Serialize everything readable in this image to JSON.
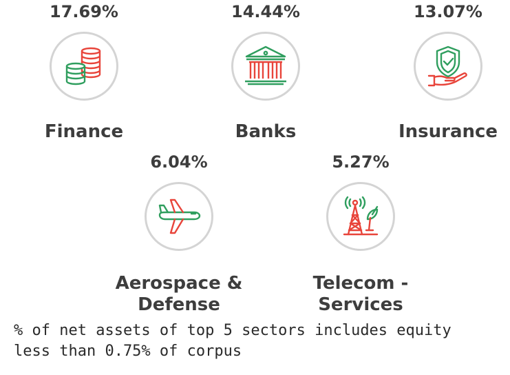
{
  "sectors": [
    {
      "name": "Finance",
      "percent": "17.69%",
      "icon": "coins-stack-icon"
    },
    {
      "name": "Banks",
      "percent": "14.44%",
      "icon": "bank-building-icon"
    },
    {
      "name": "Insurance",
      "percent": "13.07%",
      "icon": "shield-hand-icon"
    },
    {
      "name": "Aerospace & Defense",
      "percent": "6.04%",
      "icon": "airplane-icon"
    },
    {
      "name": "Telecom - Services",
      "percent": "5.27%",
      "icon": "telecom-tower-icon"
    }
  ],
  "footnote": "% of net assets of top 5 sectors includes equity less than 0.75% of corpus",
  "colors": {
    "green": "#2f9e5e",
    "red": "#e8443a",
    "ring": "#d4d4d4",
    "text": "#3d3d3d"
  }
}
